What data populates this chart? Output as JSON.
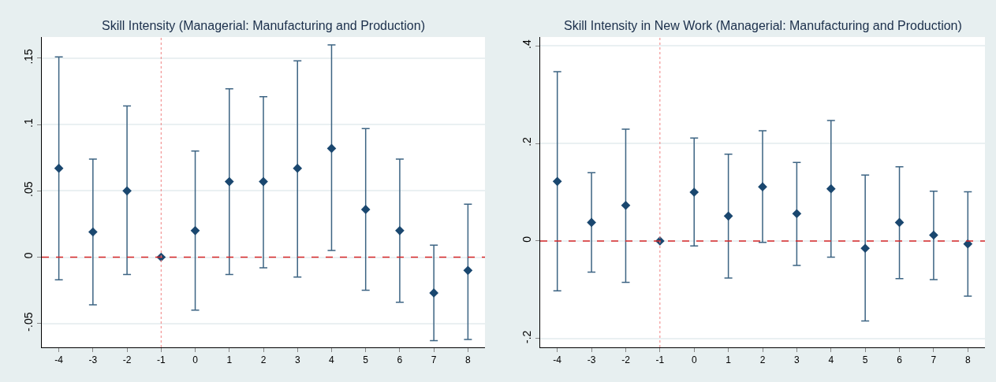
{
  "chart_data": [
    {
      "type": "scatter",
      "title": "Skill Intensity (Managerial: Manufacturing and Production)",
      "x": [
        -4,
        -3,
        -2,
        -1,
        0,
        1,
        2,
        3,
        4,
        5,
        6,
        7,
        8
      ],
      "series": [
        {
          "color": "#1a476f",
          "values": [
            0.067,
            0.019,
            0.05,
            0,
            0.02,
            0.057,
            0.057,
            0.067,
            0.082,
            0.036,
            0.02,
            -0.027,
            -0.01
          ],
          "errors": [
            [
              -0.017,
              0.151
            ],
            [
              -0.036,
              0.074
            ],
            [
              -0.013,
              0.114
            ],
            null,
            [
              -0.04,
              0.08
            ],
            [
              -0.013,
              0.127
            ],
            [
              -0.008,
              0.121
            ],
            [
              -0.015,
              0.148
            ],
            [
              0.005,
              0.16
            ],
            [
              -0.025,
              0.097
            ],
            [
              -0.034,
              0.074
            ],
            [
              -0.063,
              0.009
            ],
            [
              -0.062,
              0.04
            ]
          ]
        }
      ],
      "marker": "diamond",
      "xlim": [
        -4.5,
        8.5
      ],
      "xticks": [
        -4,
        -3,
        -2,
        -1,
        0,
        1,
        2,
        3,
        4,
        5,
        6,
        7,
        8
      ],
      "ylim": [
        -0.068,
        0.166
      ],
      "yticks": [
        {
          "value": -0.05,
          "label": "-.05"
        },
        0,
        {
          "value": 0.05,
          "label": ".05"
        },
        {
          "value": 0.1,
          "label": ".1"
        },
        {
          "value": 0.15,
          "label": ".15"
        }
      ],
      "grid": "y",
      "ref_lines": [
        {
          "axis": "y",
          "value": 0,
          "color": "#d62728",
          "line_style": "dashed"
        },
        {
          "axis": "x",
          "value": -1,
          "color": "#f08080",
          "line_style": "dotted"
        }
      ]
    },
    {
      "type": "scatter",
      "title": "Skill Intensity in New Work (Managerial: Manufacturing and Production)",
      "x": [
        -4,
        -3,
        -2,
        -1,
        0,
        1,
        2,
        3,
        4,
        5,
        6,
        7,
        8
      ],
      "series": [
        {
          "color": "#1a476f",
          "values": [
            0.122,
            0.038,
            0.073,
            0,
            0.1,
            0.051,
            0.111,
            0.056,
            0.107,
            -0.015,
            0.038,
            0.012,
            -0.006
          ],
          "errors": [
            [
              -0.102,
              0.347
            ],
            [
              -0.064,
              0.14
            ],
            [
              -0.085,
              0.229
            ],
            null,
            [
              -0.01,
              0.211
            ],
            [
              -0.076,
              0.178
            ],
            [
              -0.003,
              0.226
            ],
            [
              -0.05,
              0.161
            ],
            [
              -0.033,
              0.247
            ],
            [
              -0.164,
              0.135
            ],
            [
              -0.077,
              0.152
            ],
            [
              -0.079,
              0.102
            ],
            [
              -0.113,
              0.101
            ]
          ]
        }
      ],
      "marker": "diamond",
      "xlim": [
        -4.5,
        8.5
      ],
      "xticks": [
        -4,
        -3,
        -2,
        -1,
        0,
        1,
        2,
        3,
        4,
        5,
        6,
        7,
        8
      ],
      "ylim": [
        -0.218,
        0.418
      ],
      "yticks": [
        {
          "value": -0.2,
          "label": "-.2"
        },
        0,
        {
          "value": 0.2,
          "label": ".2"
        },
        {
          "value": 0.4,
          "label": ".4"
        }
      ],
      "grid": "y",
      "ref_lines": [
        {
          "axis": "y",
          "value": 0,
          "color": "#d62728",
          "line_style": "dashed"
        },
        {
          "axis": "x",
          "value": -1,
          "color": "#f08080",
          "line_style": "dotted"
        }
      ]
    }
  ]
}
